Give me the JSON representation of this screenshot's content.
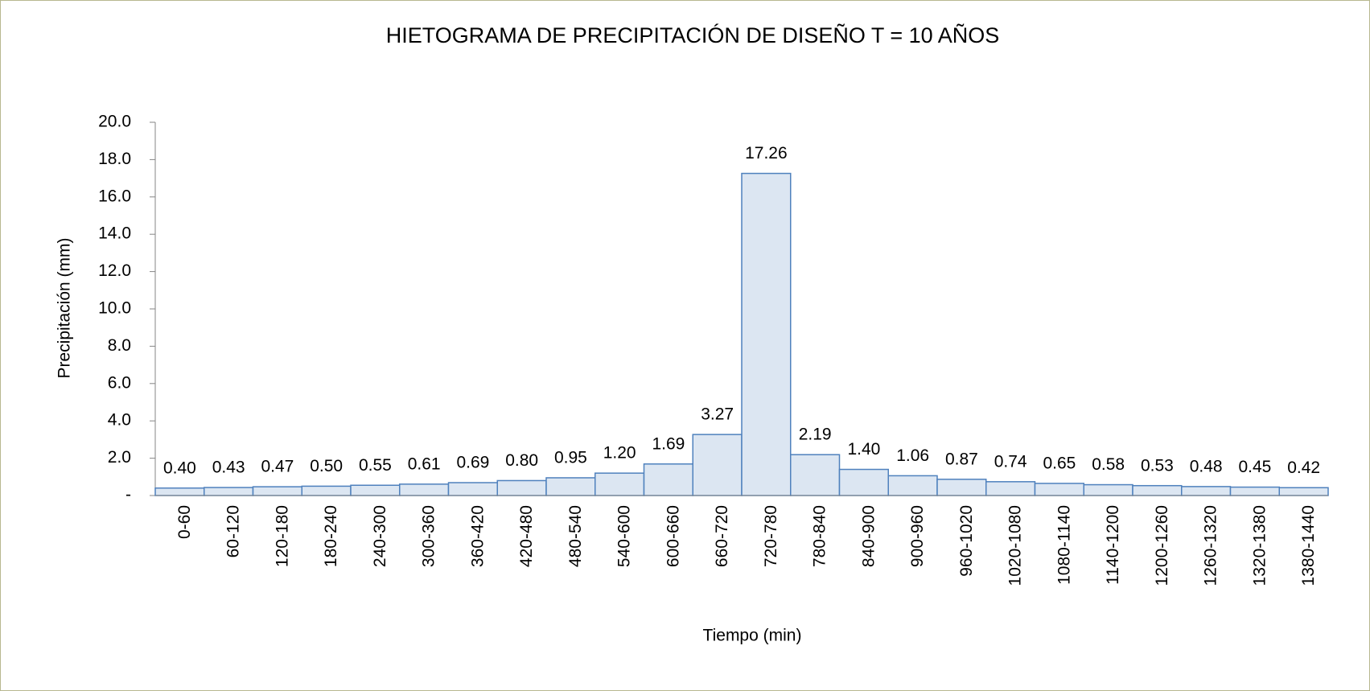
{
  "chart_data": {
    "type": "bar",
    "title": "HIETOGRAMA DE PRECIPITACIÓN DE DISEÑO T = 10 AÑOS",
    "x_label": "Tiempo (min)",
    "y_label": "Precipitación (mm)",
    "categories": [
      "0-60",
      "60-120",
      "120-180",
      "180-240",
      "240-300",
      "300-360",
      "360-420",
      "420-480",
      "480-540",
      "540-600",
      "600-660",
      "660-720",
      "720-780",
      "780-840",
      "840-900",
      "900-960",
      "960-1020",
      "1020-1080",
      "1080-1140",
      "1140-1200",
      "1200-1260",
      "1260-1320",
      "1320-1380",
      "1380-1440"
    ],
    "values": [
      0.4,
      0.43,
      0.47,
      0.5,
      0.55,
      0.61,
      0.69,
      0.8,
      0.95,
      1.2,
      1.69,
      3.27,
      17.26,
      2.19,
      1.4,
      1.06,
      0.87,
      0.74,
      0.65,
      0.58,
      0.53,
      0.48,
      0.45,
      0.42
    ],
    "value_labels": [
      "0.40",
      "0.43",
      "0.47",
      "0.50",
      "0.55",
      "0.61",
      "0.69",
      "0.80",
      "0.95",
      "1.20",
      "1.69",
      "3.27",
      "17.26",
      "2.19",
      "1.40",
      "1.06",
      "0.87",
      "0.74",
      "0.65",
      "0.58",
      "0.53",
      "0.48",
      "0.45",
      "0.42"
    ],
    "color": "#dce6f2",
    "edge_color": "#4f81bd",
    "ylim": [
      0,
      20
    ],
    "yticks": [
      {
        "value": 0,
        "label": "-"
      },
      {
        "value": 2,
        "label": "2.0"
      },
      {
        "value": 4,
        "label": "4.0"
      },
      {
        "value": 6,
        "label": "6.0"
      },
      {
        "value": 8,
        "label": "8.0"
      },
      {
        "value": 10,
        "label": "10.0"
      },
      {
        "value": 12,
        "label": "12.0"
      },
      {
        "value": 14,
        "label": "14.0"
      },
      {
        "value": 16,
        "label": "16.0"
      },
      {
        "value": 18,
        "label": "18.0"
      },
      {
        "value": 20,
        "label": "20.0"
      }
    ],
    "grid": false
  }
}
